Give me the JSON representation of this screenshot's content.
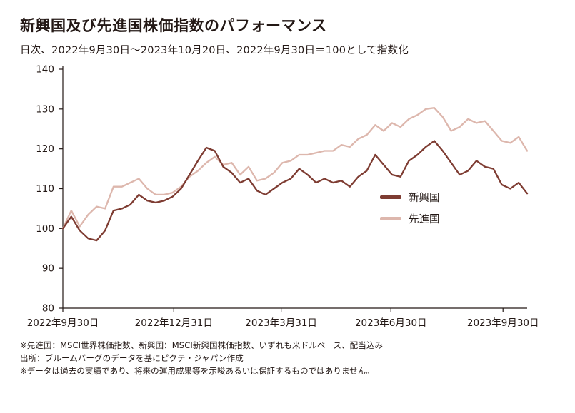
{
  "page": {
    "title": "新興国及び先進国株価指数のパフォーマンス",
    "subtitle": "日次、2022年9月30日～2023年10月20日、2022年9月30日＝100として指数化",
    "footnotes": [
      "※先進国：MSCI世界株価指数、新興国：MSCI新興国株価指数、いずれも米ドルベース、配当込み",
      "出所：ブルームバーグのデータを基にピクテ・ジャパン作成",
      "※データは過去の実績であり、将来の運用成果等を示唆あるいは保証するものではありません。"
    ]
  },
  "chart_data": {
    "type": "line",
    "title": "新興国及び先進国株価指数のパフォーマンス",
    "subtitle": "日次、2022年9月30日～2023年10月20日、2022年9月30日＝100として指数化",
    "ylim": [
      80,
      140
    ],
    "yticks": [
      80,
      90,
      100,
      110,
      120,
      130,
      140
    ],
    "grid": false,
    "legend_position": "inside-right",
    "x_unit": "week_index_from_2022-09-30",
    "x_max": 55,
    "x_ticks": [
      {
        "label": "2022年9月30日",
        "pos": 0
      },
      {
        "label": "2022年12月31日",
        "pos": 13.14
      },
      {
        "label": "2023年3月31日",
        "pos": 25.86
      },
      {
        "label": "2023年6月30日",
        "pos": 38.86
      },
      {
        "label": "2023年9月30日",
        "pos": 52.14
      }
    ],
    "series": [
      {
        "name": "新興国",
        "color": "#7e3c32",
        "values": [
          100,
          103,
          99.5,
          97.5,
          97,
          99.5,
          104.5,
          105,
          106,
          108.5,
          107,
          106.5,
          107,
          108,
          110,
          113.5,
          117,
          120.3,
          119.5,
          115.5,
          114,
          111.5,
          112.5,
          109.5,
          108.5,
          110,
          111.5,
          112.5,
          115,
          113.5,
          111.5,
          112.5,
          111.5,
          112,
          110.5,
          113,
          114.5,
          118.5,
          116,
          113.5,
          113,
          117,
          118.5,
          120.5,
          122,
          119.5,
          116.5,
          113.5,
          114.5,
          117,
          115.5,
          115,
          111,
          110,
          111.5,
          108.8
        ]
      },
      {
        "name": "先進国",
        "color": "#ddb7ad",
        "values": [
          100,
          104.5,
          100.5,
          103.5,
          105.5,
          105,
          110.5,
          110.5,
          111.5,
          112.5,
          110,
          108.5,
          108.5,
          109,
          110.5,
          113,
          114.5,
          116.5,
          118,
          116,
          116.5,
          113.5,
          115.5,
          112,
          112.5,
          114,
          116.5,
          117,
          118.5,
          118.5,
          119,
          119.5,
          119.5,
          121,
          120.5,
          122.5,
          123.5,
          126,
          124.5,
          126.5,
          125.5,
          127.5,
          128.5,
          130,
          130.3,
          128,
          124.5,
          125.5,
          127.5,
          126.5,
          127,
          124.5,
          122,
          121.5,
          123,
          119.5
        ]
      }
    ]
  }
}
